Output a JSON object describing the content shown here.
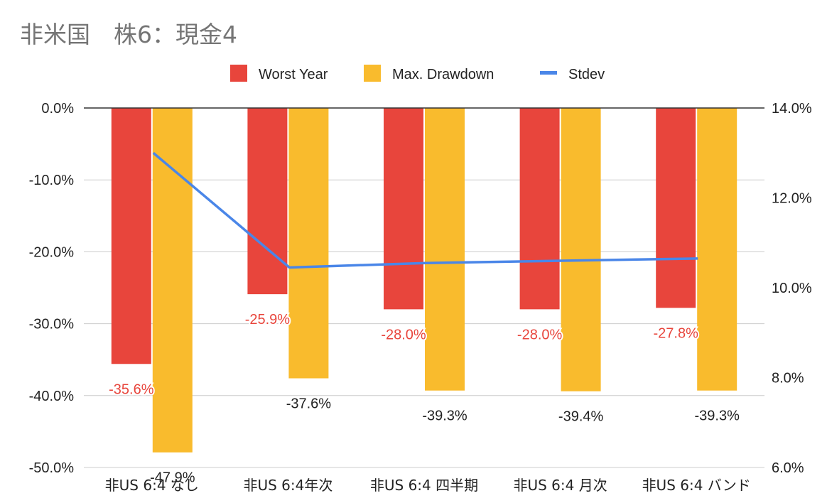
{
  "chart_data": {
    "type": "bar",
    "title": "非米国　株6：現金4",
    "categories": [
      "非US 6:4 なし",
      "非US 6:4年次",
      "非US 6:4 四半期",
      "非US 6:4 月次",
      "非US 6:4 バンド"
    ],
    "series": [
      {
        "name": "Worst Year",
        "type": "bar",
        "axis": "left",
        "color": "#e8453c",
        "values": [
          -35.6,
          -25.9,
          -28.0,
          -28.0,
          -27.8
        ],
        "labels": [
          "-35.6%",
          "-25.9%",
          "-28.0%",
          "-28.0%",
          "-27.8%"
        ]
      },
      {
        "name": "Max. Drawdown",
        "type": "bar",
        "axis": "left",
        "color": "#f9bb2d",
        "values": [
          -47.9,
          -37.6,
          -39.3,
          -39.4,
          -39.3
        ],
        "labels": [
          "-47.9%",
          "-37.6%",
          "-39.3%",
          "-39.4%",
          "-39.3%"
        ]
      },
      {
        "name": "Stdev",
        "type": "line",
        "axis": "right",
        "color": "#4a86e8",
        "values": [
          13.0,
          10.45,
          10.55,
          10.6,
          10.65
        ]
      }
    ],
    "left_axis": {
      "min": -50,
      "max": 0,
      "ticks": [
        0,
        -10,
        -20,
        -30,
        -40,
        -50
      ],
      "tick_labels": [
        "0.0%",
        "-10.0%",
        "-20.0%",
        "-30.0%",
        "-40.0%",
        "-50.0%"
      ]
    },
    "right_axis": {
      "min": 6,
      "max": 14,
      "ticks": [
        14,
        12,
        10,
        8,
        6
      ],
      "tick_labels": [
        "14.0%",
        "12.0%",
        "10.0%",
        "8.0%",
        "6.0%"
      ]
    },
    "grid": true,
    "legend": "top"
  }
}
